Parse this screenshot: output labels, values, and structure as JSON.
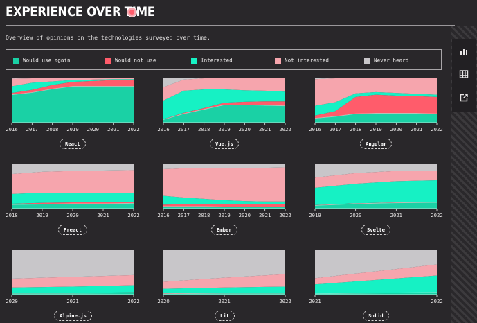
{
  "header": {
    "title": "EXPERIENCE OVER TIME",
    "subtitle": "Overview of opinions on the technologies surveyed over time."
  },
  "legend": [
    {
      "label": "Would use again",
      "color": "#1ad1a5"
    },
    {
      "label": "Would not use",
      "color": "#ff5c6b"
    },
    {
      "label": "Interested",
      "color": "#16f1c4"
    },
    {
      "label": "Not interested",
      "color": "#f6a5ad"
    },
    {
      "label": "Never heard",
      "color": "#c8c6c9"
    }
  ],
  "toolbar": [
    {
      "name": "chart-view-icon"
    },
    {
      "name": "table-view-icon"
    },
    {
      "name": "share-icon"
    }
  ],
  "chart_data": [
    {
      "type": "area",
      "label": "React",
      "x": [
        2016,
        2017,
        2018,
        2019,
        2020,
        2021,
        2022
      ],
      "series": {
        "would_use_again": [
          63,
          68,
          76,
          82,
          82,
          82,
          82
        ],
        "would_not_use": [
          4,
          6,
          9,
          10,
          12,
          14,
          14
        ],
        "interested": [
          15,
          16,
          8,
          4,
          3,
          2,
          2
        ],
        "not_interested": [
          17,
          10,
          7,
          4,
          3,
          2,
          2
        ],
        "never_heard": [
          1,
          0,
          0,
          0,
          0,
          0,
          0
        ]
      }
    },
    {
      "type": "area",
      "label": "Vue.js",
      "x": [
        2016,
        2017,
        2018,
        2019,
        2020,
        2021,
        2022
      ],
      "series": {
        "would_use_again": [
          7,
          20,
          30,
          40,
          40,
          39,
          38
        ],
        "would_not_use": [
          1,
          2,
          3,
          5,
          7,
          9,
          10
        ],
        "interested": [
          42,
          50,
          42,
          30,
          26,
          24,
          22
        ],
        "not_interested": [
          30,
          25,
          25,
          25,
          27,
          28,
          30
        ],
        "never_heard": [
          20,
          3,
          0,
          0,
          0,
          0,
          0
        ]
      }
    },
    {
      "type": "area",
      "label": "Angular",
      "x": [
        2016,
        2017,
        2018,
        2019,
        2020,
        2021,
        2022
      ],
      "series": {
        "would_use_again": [
          10,
          14,
          20,
          21,
          21,
          21,
          20
        ],
        "would_not_use": [
          6,
          12,
          38,
          42,
          40,
          39,
          38
        ],
        "interested": [
          22,
          20,
          8,
          6,
          6,
          5,
          5
        ],
        "not_interested": [
          60,
          54,
          34,
          31,
          33,
          35,
          37
        ],
        "never_heard": [
          2,
          0,
          0,
          0,
          0,
          0,
          0
        ]
      }
    },
    {
      "type": "area",
      "label": "Preact",
      "x": [
        2018,
        2019,
        2020,
        2021,
        2022
      ],
      "series": {
        "would_use_again": [
          9,
          10,
          11,
          11,
          12
        ],
        "would_not_use": [
          2,
          3,
          3,
          3,
          3
        ],
        "interested": [
          22,
          23,
          22,
          21,
          20
        ],
        "not_interested": [
          45,
          47,
          49,
          51,
          52
        ],
        "never_heard": [
          22,
          17,
          15,
          14,
          13
        ]
      }
    },
    {
      "type": "area",
      "label": "Ember",
      "x": [
        2016,
        2017,
        2018,
        2019,
        2020,
        2021,
        2022
      ],
      "series": {
        "would_use_again": [
          5,
          5,
          5,
          4,
          4,
          4,
          4
        ],
        "would_not_use": [
          4,
          5,
          6,
          7,
          7,
          7,
          7
        ],
        "interested": [
          20,
          15,
          11,
          8,
          6,
          5,
          5
        ],
        "not_interested": [
          60,
          66,
          70,
          73,
          75,
          76,
          77
        ],
        "never_heard": [
          11,
          9,
          8,
          8,
          8,
          8,
          7
        ]
      }
    },
    {
      "type": "area",
      "label": "Svelte",
      "x": [
        2019,
        2020,
        2021,
        2022
      ],
      "series": {
        "would_use_again": [
          7,
          11,
          13,
          14
        ],
        "would_not_use": [
          1,
          1,
          1,
          1
        ],
        "interested": [
          39,
          44,
          48,
          49
        ],
        "not_interested": [
          23,
          24,
          23,
          22
        ],
        "never_heard": [
          30,
          20,
          15,
          14
        ]
      }
    },
    {
      "type": "area",
      "label": "Alpine.js",
      "x": [
        2020,
        2021,
        2022
      ],
      "series": {
        "would_use_again": [
          3,
          3,
          4
        ],
        "would_not_use": [
          1,
          1,
          1
        ],
        "interested": [
          12,
          14,
          16
        ],
        "not_interested": [
          20,
          22,
          23
        ],
        "never_heard": [
          64,
          60,
          56
        ]
      }
    },
    {
      "type": "area",
      "label": "Lit",
      "x": [
        2020,
        2021,
        2022
      ],
      "series": {
        "would_use_again": [
          2,
          3,
          3
        ],
        "would_not_use": [
          1,
          1,
          1
        ],
        "interested": [
          10,
          12,
          14
        ],
        "not_interested": [
          16,
          22,
          28
        ],
        "never_heard": [
          71,
          62,
          54
        ]
      }
    },
    {
      "type": "area",
      "label": "Solid",
      "x": [
        2021,
        2022
      ],
      "series": {
        "would_use_again": [
          2,
          5
        ],
        "would_not_use": [
          0,
          0
        ],
        "interested": [
          21,
          38
        ],
        "not_interested": [
          14,
          25
        ],
        "never_heard": [
          63,
          32
        ]
      }
    }
  ]
}
